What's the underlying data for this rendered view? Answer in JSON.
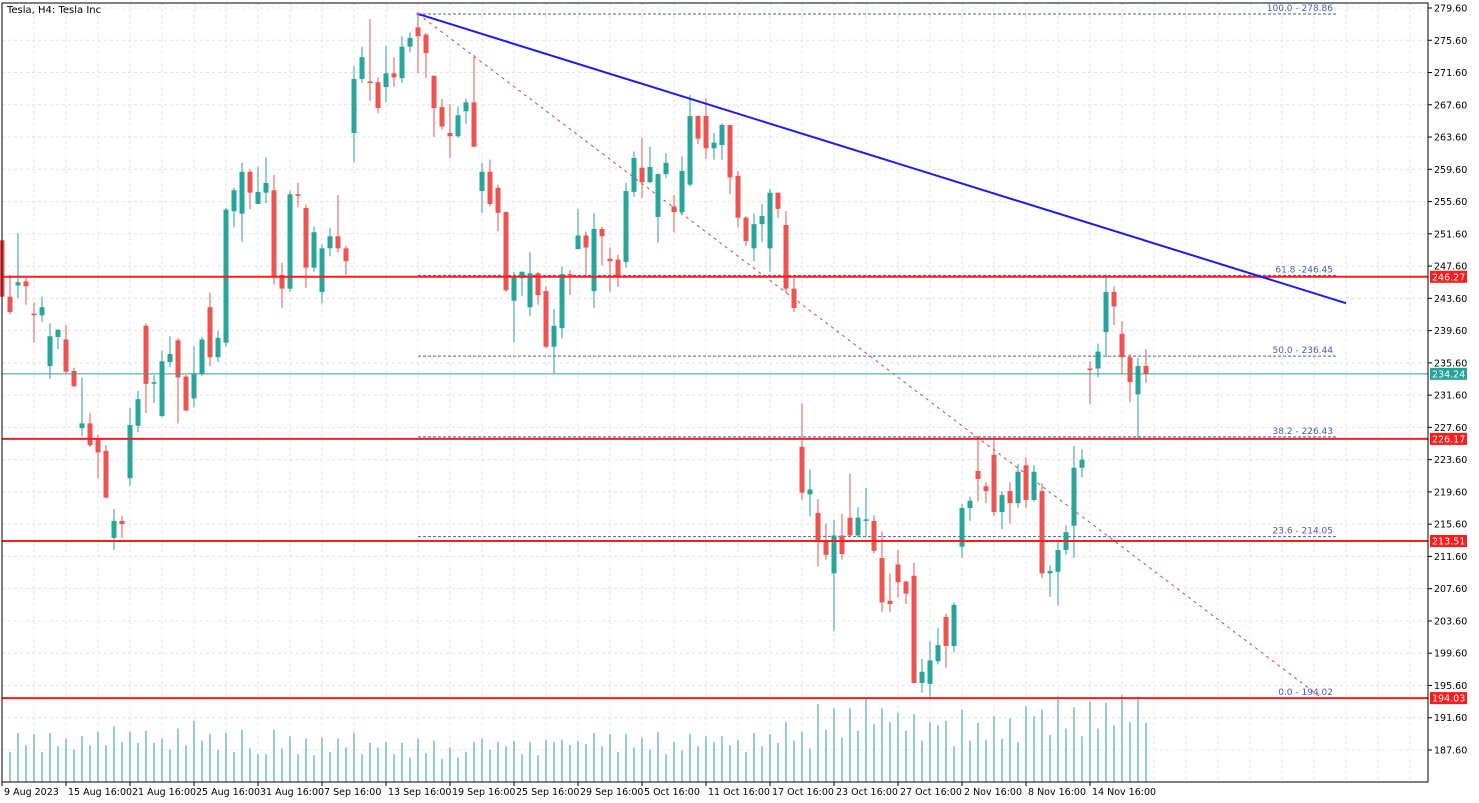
{
  "header": {
    "title": "Tesla, H4:  Tesla Inc"
  },
  "colors": {
    "bull": "#26a69a",
    "bear": "#ef5350",
    "level": "#ff1a1a",
    "trendline": "#1a1aff",
    "fib": "#4b57c4",
    "fib_diag": "#e04040",
    "current": "#26a69a",
    "grid": "#e4e4e4"
  },
  "chart_data": {
    "type": "candlestick",
    "title": "Tesla, H4:  Tesla Inc",
    "symbol": "Tesla",
    "timeframe": "H4",
    "ylim": [
      184.0,
      280.0
    ],
    "y_ticks": [
      "279.60",
      "275.60",
      "271.60",
      "267.60",
      "263.60",
      "259.60",
      "255.60",
      "251.60",
      "247.60",
      "243.60",
      "239.60",
      "235.60",
      "231.60",
      "227.60",
      "223.60",
      "219.60",
      "215.60",
      "211.60",
      "207.60",
      "203.60",
      "199.60",
      "195.60",
      "191.60",
      "187.60"
    ],
    "x_ticks": [
      "9 Aug 2023",
      "15 Aug 16:00",
      "21 Aug 16:00",
      "25 Aug 16:00",
      "31 Aug 16:00",
      "7 Sep 16:00",
      "13 Sep 16:00",
      "19 Sep 16:00",
      "25 Sep 16:00",
      "29 Sep 16:00",
      "5 Oct 16:00",
      "11 Oct 16:00",
      "17 Oct 16:00",
      "23 Oct 16:00",
      "27 Oct 16:00",
      "2 Nov 16:00",
      "8 Nov 16:00",
      "14 Nov 16:00"
    ],
    "x_tick_every_bars": 8,
    "grid": true,
    "current_price": {
      "value": 234.24,
      "label": "234.24"
    },
    "horizontal_levels": [
      {
        "value": 246.27,
        "label": "246.27"
      },
      {
        "value": 226.17,
        "label": "226.17"
      },
      {
        "value": 213.51,
        "label": "213.51"
      },
      {
        "value": 194.03,
        "label": "194.03"
      }
    ],
    "trendline": {
      "start_bar": 52,
      "start_price": 278.86,
      "end_bar": 168,
      "end_price": 243.0
    },
    "fibonacci": {
      "start_bar": 52,
      "end_bar": 165,
      "high": 278.86,
      "low": 194.02,
      "levels": [
        {
          "label": "100.0 - 278.86",
          "price": 278.86
        },
        {
          "label": "61.8 -246.45",
          "price": 246.45
        },
        {
          "label": "50.0 - 236.44",
          "price": 236.44
        },
        {
          "label": "38.2 - 226.43",
          "price": 226.43
        },
        {
          "label": "23.6 - 214.05",
          "price": 214.05
        },
        {
          "label": "0.0 - 194.02",
          "price": 194.02
        }
      ]
    },
    "candles_ohlc": [
      [
        250.8,
        251.5,
        243.8,
        243.8
      ],
      [
        243.8,
        246.5,
        241.6,
        241.9
      ],
      [
        245.2,
        251.7,
        243.6,
        245.6
      ],
      [
        245.7,
        246.1,
        242.8,
        245.1
      ],
      [
        241.7,
        243.1,
        238.1,
        241.5
      ],
      [
        241.5,
        243.8,
        240.7,
        242.5
      ],
      [
        235.2,
        240.5,
        233.6,
        238.9
      ],
      [
        238.8,
        239.8,
        237.3,
        239.7
      ],
      [
        238.5,
        240.3,
        234.2,
        234.5
      ],
      [
        234.6,
        235.0,
        232.6,
        232.7
      ],
      [
        227.5,
        233.8,
        226.5,
        228.1
      ],
      [
        228.1,
        229.4,
        225.2,
        225.4
      ],
      [
        226.2,
        226.7,
        221.3,
        224.5
      ],
      [
        224.7,
        225.4,
        218.8,
        218.9
      ],
      [
        213.9,
        217.5,
        212.4,
        216.0
      ],
      [
        216.0,
        216.6,
        213.9,
        215.6
      ],
      [
        221.3,
        230.0,
        220.3,
        227.9
      ],
      [
        227.8,
        232.1,
        227.0,
        231.1
      ],
      [
        240.2,
        240.5,
        229.4,
        233.0
      ],
      [
        233.0,
        234.1,
        230.6,
        233.2
      ],
      [
        229.0,
        237.1,
        228.9,
        235.8
      ],
      [
        235.7,
        238.9,
        235.1,
        236.7
      ],
      [
        238.4,
        238.7,
        228.1,
        233.8
      ],
      [
        233.9,
        234.1,
        229.6,
        229.7
      ],
      [
        231.2,
        237.7,
        230.1,
        234.3
      ],
      [
        234.2,
        238.8,
        234.0,
        238.5
      ],
      [
        242.5,
        244.3,
        235.2,
        236.3
      ],
      [
        236.3,
        239.6,
        235.7,
        238.7
      ],
      [
        238.1,
        254.8,
        237.6,
        254.6
      ],
      [
        254.4,
        257.3,
        252.4,
        257.0
      ],
      [
        254.1,
        260.4,
        250.6,
        259.3
      ],
      [
        259.3,
        259.6,
        254.7,
        256.7
      ],
      [
        255.3,
        259.9,
        255.3,
        256.8
      ],
      [
        256.7,
        261.1,
        255.4,
        257.9
      ],
      [
        257.0,
        258.9,
        245.3,
        246.3
      ],
      [
        246.5,
        248.0,
        242.4,
        244.8
      ],
      [
        244.8,
        256.9,
        244.4,
        256.5
      ],
      [
        256.5,
        257.9,
        254.9,
        256.3
      ],
      [
        254.8,
        255.2,
        244.9,
        247.4
      ],
      [
        247.4,
        252.5,
        246.9,
        251.8
      ],
      [
        244.4,
        250.3,
        243.0,
        249.8
      ],
      [
        249.8,
        252.3,
        248.8,
        251.3
      ],
      [
        251.3,
        256.4,
        249.3,
        249.8
      ],
      [
        249.8,
        250.1,
        246.5,
        248.2
      ],
      [
        264.1,
        272.4,
        260.4,
        270.8
      ],
      [
        270.8,
        274.8,
        270.3,
        273.5
      ],
      [
        270.5,
        278.2,
        268.1,
        270.3
      ],
      [
        270.4,
        271.0,
        266.6,
        267.2
      ],
      [
        269.8,
        274.9,
        267.9,
        271.5
      ],
      [
        271.5,
        273.5,
        269.8,
        271.0
      ],
      [
        270.9,
        276.1,
        270.3,
        274.8
      ],
      [
        274.8,
        276.6,
        274.1,
        275.9
      ],
      [
        277.2,
        278.86,
        271.5,
        276.1
      ],
      [
        276.3,
        276.5,
        270.9,
        274.0
      ],
      [
        271.2,
        271.2,
        263.6,
        267.2
      ],
      [
        267.3,
        268.3,
        264.5,
        264.9
      ],
      [
        264.1,
        267.7,
        261.0,
        263.7
      ],
      [
        263.7,
        267.4,
        263.5,
        266.3
      ],
      [
        266.8,
        268.4,
        265.2,
        267.9
      ],
      [
        267.9,
        273.8,
        262.4,
        262.4
      ],
      [
        256.9,
        260.4,
        254.2,
        259.3
      ],
      [
        259.3,
        260.8,
        255.0,
        255.3
      ],
      [
        257.3,
        257.7,
        251.9,
        254.2
      ],
      [
        254.3,
        254.4,
        244.4,
        244.6
      ],
      [
        243.3,
        246.9,
        238.1,
        246.3
      ],
      [
        246.1,
        246.9,
        243.9,
        246.9
      ],
      [
        242.5,
        249.3,
        241.4,
        246.7
      ],
      [
        246.7,
        246.9,
        242.8,
        244.0
      ],
      [
        244.5,
        245.1,
        237.4,
        237.6
      ],
      [
        237.6,
        242.3,
        234.3,
        240.2
      ],
      [
        239.9,
        247.5,
        238.6,
        246.6
      ],
      [
        246.6,
        247.1,
        244.0,
        246.2
      ],
      [
        249.7,
        254.7,
        249.7,
        251.4
      ],
      [
        251.4,
        251.9,
        246.4,
        249.9
      ],
      [
        244.5,
        254.2,
        242.4,
        252.2
      ],
      [
        252.2,
        252.5,
        247.7,
        251.3
      ],
      [
        248.5,
        249.9,
        244.4,
        248.2
      ],
      [
        248.4,
        249.0,
        245.0,
        246.2
      ],
      [
        248.1,
        257.9,
        247.4,
        256.9
      ],
      [
        256.8,
        261.8,
        256.2,
        261.0
      ],
      [
        259.8,
        263.5,
        256.0,
        258.0
      ],
      [
        258.0,
        262.4,
        257.9,
        259.9
      ],
      [
        253.7,
        259.1,
        250.5,
        259.0
      ],
      [
        259.0,
        261.6,
        258.5,
        260.4
      ],
      [
        255.0,
        256.4,
        251.8,
        254.3
      ],
      [
        254.3,
        261.2,
        253.9,
        259.4
      ],
      [
        257.7,
        268.8,
        257.5,
        266.2
      ],
      [
        266.2,
        266.3,
        262.7,
        263.4
      ],
      [
        266.2,
        268.4,
        260.9,
        262.2
      ],
      [
        262.2,
        264.1,
        260.8,
        262.9
      ],
      [
        262.6,
        265.3,
        260.8,
        265.1
      ],
      [
        265.1,
        265.1,
        256.5,
        258.6
      ],
      [
        258.8,
        259.4,
        252.4,
        253.6
      ],
      [
        253.6,
        253.8,
        250.1,
        250.7
      ],
      [
        249.8,
        254.1,
        248.2,
        252.8
      ],
      [
        252.8,
        255.3,
        250.6,
        253.8
      ],
      [
        249.8,
        257.2,
        246.9,
        256.7
      ],
      [
        256.7,
        256.7,
        253.6,
        254.7
      ],
      [
        252.7,
        254.4,
        244.3,
        244.8
      ],
      [
        244.8,
        246.1,
        241.9,
        242.4
      ],
      [
        225.2,
        230.6,
        218.6,
        219.5
      ],
      [
        219.3,
        222.4,
        216.6,
        219.9
      ],
      [
        217.0,
        218.7,
        210.3,
        213.6
      ],
      [
        213.6,
        215.7,
        211.2,
        211.8
      ],
      [
        209.5,
        216.1,
        202.3,
        214.2
      ],
      [
        214.2,
        216.9,
        211.2,
        211.9
      ],
      [
        216.4,
        221.9,
        214.0,
        214.2
      ],
      [
        214.2,
        217.7,
        214.0,
        216.4
      ],
      [
        216.0,
        220.1,
        214.1,
        216.2
      ],
      [
        216.0,
        216.7,
        212.0,
        212.3
      ],
      [
        211.4,
        214.7,
        204.7,
        205.9
      ],
      [
        206.1,
        209.5,
        204.7,
        205.7
      ],
      [
        210.6,
        212.4,
        206.5,
        208.4
      ],
      [
        208.5,
        208.5,
        205.7,
        207.0
      ],
      [
        209.2,
        210.8,
        195.9,
        195.9
      ],
      [
        195.9,
        198.9,
        194.7,
        197.3
      ],
      [
        195.8,
        201.1,
        194.02,
        198.7
      ],
      [
        198.6,
        202.7,
        198.2,
        200.6
      ],
      [
        204.1,
        204.5,
        197.8,
        200.5
      ],
      [
        200.5,
        205.9,
        199.7,
        205.6
      ],
      [
        212.8,
        218.1,
        211.4,
        217.6
      ],
      [
        217.6,
        219.0,
        216.0,
        218.5
      ],
      [
        222.2,
        226.2,
        218.4,
        221.2
      ],
      [
        220.3,
        220.8,
        218.2,
        219.7
      ],
      [
        224.2,
        226.0,
        216.6,
        217.1
      ],
      [
        217.1,
        219.7,
        215.0,
        219.2
      ],
      [
        219.7,
        220.8,
        215.7,
        218.2
      ],
      [
        218.2,
        223.1,
        217.6,
        222.1
      ],
      [
        222.9,
        223.9,
        217.6,
        218.6
      ],
      [
        218.6,
        222.9,
        218.4,
        222.1
      ],
      [
        219.7,
        220.7,
        208.9,
        209.5
      ],
      [
        209.5,
        210.5,
        206.6,
        209.8
      ],
      [
        209.7,
        213.4,
        205.5,
        212.4
      ],
      [
        212.4,
        215.4,
        211.8,
        214.6
      ],
      [
        215.4,
        225.3,
        211.4,
        222.6
      ],
      [
        222.6,
        224.9,
        221.4,
        223.6
      ],
      [
        234.9,
        235.8,
        230.5,
        234.7
      ],
      [
        234.9,
        238.0,
        233.8,
        237.0
      ],
      [
        239.4,
        246.6,
        236.3,
        244.4
      ],
      [
        244.4,
        245.1,
        240.3,
        242.6
      ],
      [
        239.2,
        240.8,
        234.2,
        236.3
      ],
      [
        236.3,
        236.7,
        230.7,
        233.2
      ],
      [
        231.7,
        236.2,
        226.3,
        235.2
      ],
      [
        235.2,
        237.3,
        233.1,
        234.24
      ]
    ],
    "volume_max": 234,
    "volume": [
      80,
      81,
      132,
      99,
      129,
      81,
      132,
      96,
      117,
      87,
      123,
      99,
      135,
      99,
      150,
      108,
      135,
      105,
      138,
      105,
      117,
      87,
      144,
      99,
      165,
      111,
      129,
      87,
      132,
      81,
      141,
      90,
      75,
      75,
      141,
      90,
      123,
      75,
      117,
      72,
      120,
      81,
      117,
      93,
      132,
      75,
      105,
      93,
      108,
      75,
      105,
      66,
      117,
      78,
      111,
      63,
      93,
      66,
      81,
      108,
      117,
      87,
      108,
      96,
      111,
      75,
      108,
      72,
      114,
      108,
      114,
      100,
      110,
      102,
      132,
      96,
      129,
      81,
      129,
      93,
      120,
      87,
      135,
      75,
      108,
      84,
      129,
      96,
      123,
      108,
      123,
      99,
      114,
      81,
      132,
      96,
      129,
      105,
      162,
      111,
      135,
      90,
      210,
      141,
      198,
      120,
      198,
      138,
      225,
      156,
      198,
      162,
      186,
      138,
      183,
      111,
      162,
      153,
      165,
      96,
      195,
      111,
      159,
      114,
      177,
      117,
      171,
      108,
      204,
      177,
      195,
      126,
      231,
      144,
      201,
      123,
      216,
      144,
      213,
      153,
      234,
      162,
      230,
      160
    ]
  }
}
